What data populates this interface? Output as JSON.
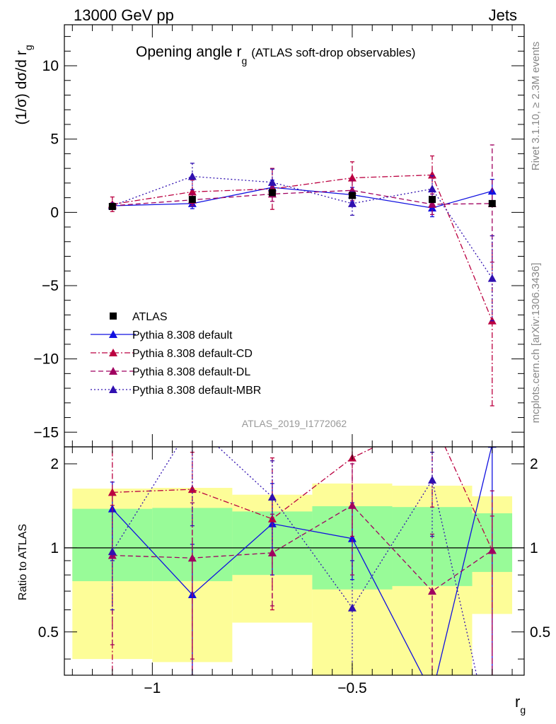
{
  "header": {
    "left": "13000 GeV pp",
    "right": "Jets"
  },
  "side_text": {
    "rivet": "Rivet 3.1.10, ≥ 2.3M events",
    "mcplots": "mcplots.cern.ch [arXiv:1306.3436]"
  },
  "watermark": "ATLAS_2019_I1772062",
  "chart_data": {
    "type": "scatter",
    "title_main": "Opening angle r",
    "title_sub": "g",
    "title_suffix": "(ATLAS soft-drop observables)",
    "ylabel": "(1/σ) dσ/d r",
    "ylabel_sub": "g",
    "xlabel": "r",
    "xlabel_sub": "g",
    "ratio_ylabel": "Ratio to ATLAS",
    "xlim": [
      -1.22,
      -0.07
    ],
    "ylim": [
      -16.0,
      12.8
    ],
    "ratio_ylim": [
      0.35,
      2.3
    ],
    "ratio_scale": "log",
    "x_major_ticks": [
      -1.0,
      -0.5
    ],
    "x_tick_labels": [
      "−1",
      "−0.5"
    ],
    "y_major_ticks": [
      -15,
      -10,
      -5,
      0,
      5,
      10
    ],
    "y_tick_labels": [
      "−15",
      "−10",
      "−5",
      "0",
      "5",
      "10"
    ],
    "ratio_major_ticks": [
      0.5,
      1,
      2
    ],
    "ratio_tick_labels": [
      "0.5",
      "1",
      "2"
    ],
    "legend_position": "lower-left",
    "bin_edges": [
      -1.2,
      -1.0,
      -0.8,
      -0.6,
      -0.4,
      -0.2,
      -0.1
    ],
    "x": [
      -1.1,
      -0.9,
      -0.7,
      -0.5,
      -0.3,
      -0.15
    ],
    "band_green": [
      [
        0.76,
        1.38
      ],
      [
        0.76,
        1.39
      ],
      [
        0.8,
        1.35
      ],
      [
        0.71,
        1.41
      ],
      [
        0.73,
        1.4
      ],
      [
        0.82,
        1.33
      ]
    ],
    "band_yellow": [
      [
        0.4,
        1.63
      ],
      [
        0.39,
        1.64
      ],
      [
        0.54,
        1.55
      ],
      [
        0.31,
        1.7
      ],
      [
        0.28,
        1.67
      ],
      [
        0.58,
        1.53
      ]
    ],
    "series": [
      {
        "name": "ATLAS",
        "color": "#000000",
        "marker": "square",
        "line": "none",
        "values": [
          0.4,
          0.88,
          1.35,
          1.15,
          0.88,
          0.6
        ],
        "errors": [
          0.05,
          0.08,
          0.1,
          0.12,
          0.1,
          0.08
        ],
        "ratio": [
          1,
          1,
          1,
          1,
          1,
          1
        ],
        "ratio_errors": []
      },
      {
        "name": "Pythia 8.308 default",
        "color": "#1010e0",
        "marker": "triangle",
        "line": "solid",
        "values": [
          0.45,
          0.6,
          1.7,
          1.2,
          0.3,
          1.45
        ],
        "errors": [
          0.1,
          0.35,
          0.5,
          0.5,
          0.6,
          0.8
        ],
        "ratio": [
          1.38,
          0.68,
          1.22,
          1.08,
          0.3,
          2.35
        ],
        "ratio_errors": [
          [
            0.9,
            1.72
          ],
          [
            0.35,
            1.03
          ],
          [
            0.8,
            1.7
          ],
          [
            0.77,
            1.45
          ],
          [
            0.25,
            0.32
          ],
          [
            0.3,
            2.35
          ]
        ]
      },
      {
        "name": "Pythia 8.308 default-CD",
        "color": "#bb0040",
        "marker": "triangle",
        "line": "dashdot",
        "values": [
          0.55,
          1.4,
          1.6,
          2.35,
          2.55,
          -7.4
        ],
        "errors": [
          0.5,
          0.8,
          1.4,
          1.1,
          1.3,
          5.8
        ],
        "ratio": [
          1.58,
          1.62,
          1.27,
          2.1,
          2.9,
          0.98
        ],
        "ratio_errors": [
          [
            0.3,
            2.3
          ],
          [
            0.3,
            2.2
          ],
          [
            0.6,
            2.1
          ],
          [
            1.1,
            2.6
          ],
          [
            1.4,
            3.2
          ],
          [
            0.2,
            1.3
          ]
        ]
      },
      {
        "name": "Pythia 8.308 default-DL",
        "color": "#a00060",
        "marker": "triangle",
        "line": "dashed",
        "values": [
          0.45,
          0.85,
          1.25,
          1.5,
          0.55,
          0.6
        ],
        "errors": [
          0.2,
          0.4,
          0.5,
          0.7,
          0.7,
          4.0
        ],
        "ratio": [
          0.94,
          0.92,
          0.96,
          1.42,
          0.7,
          0.98
        ],
        "ratio_errors": [
          [
            0.45,
            1.42
          ],
          [
            0.4,
            1.45
          ],
          [
            0.62,
            1.32
          ],
          [
            0.8,
            2.0
          ],
          [
            0.32,
            1.12
          ],
          [
            0.3,
            1.6
          ]
        ]
      },
      {
        "name": "Pythia 8.308 default-MBR",
        "color": "#3010b0",
        "marker": "triangle",
        "line": "dotted",
        "values": [
          0.45,
          2.45,
          2.05,
          0.6,
          1.6,
          -4.5
        ],
        "errors": [
          0.1,
          0.9,
          0.9,
          0.8,
          0.9,
          2.9
        ],
        "ratio": [
          0.97,
          2.8,
          1.52,
          0.61,
          1.75,
          0.2
        ],
        "ratio_errors": [
          [
            0.6,
            1.35
          ],
          [
            1.2,
            3.0
          ],
          [
            1.0,
            2.05
          ],
          [
            0.3,
            0.9
          ],
          [
            1.1,
            2.2
          ],
          [
            0.2,
            0.3
          ]
        ]
      }
    ]
  }
}
